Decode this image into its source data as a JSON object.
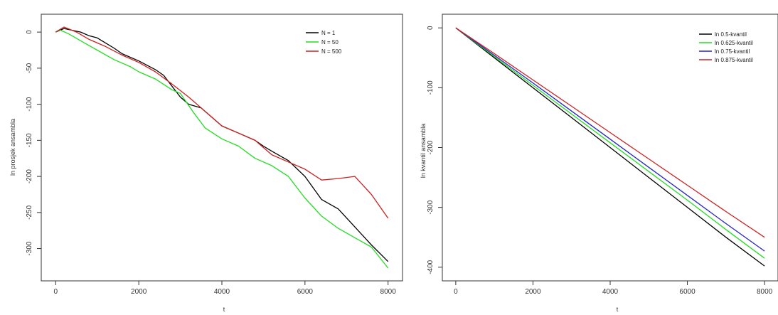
{
  "chart_data": [
    {
      "type": "line",
      "title": "",
      "xlabel": "t",
      "ylabel": "ln prosjek ansambla",
      "xlim": [
        0,
        8000
      ],
      "ylim": [
        -330,
        10
      ],
      "x_ticks": [
        0,
        2000,
        4000,
        6000,
        8000
      ],
      "y_ticks": [
        0,
        -50,
        -100,
        -150,
        -200,
        -250,
        -300
      ],
      "legend_placement": "top-right",
      "series": [
        {
          "name": "N = 1",
          "color": "#000000",
          "x": [
            0,
            200,
            600,
            800,
            1000,
            1200,
            1400,
            1600,
            2000,
            2400,
            2600,
            2800,
            3000,
            3200,
            3500,
            4000,
            4400,
            4800,
            5000,
            5200,
            5600,
            6000,
            6400,
            6800,
            7200,
            7600,
            8000
          ],
          "values": [
            0,
            5,
            0,
            -5,
            -8,
            -15,
            -22,
            -30,
            -40,
            -52,
            -60,
            -75,
            -90,
            -100,
            -105,
            -130,
            -140,
            -150,
            -158,
            -165,
            -178,
            -200,
            -232,
            -245,
            -270,
            -295,
            -318
          ]
        },
        {
          "name": "N = 50",
          "color": "#22dd22",
          "x": [
            0,
            100,
            300,
            600,
            1000,
            1400,
            1800,
            2000,
            2400,
            2800,
            3000,
            3300,
            3600,
            4000,
            4400,
            4800,
            5200,
            5600,
            6000,
            6400,
            6800,
            7200,
            7600,
            8000
          ],
          "values": [
            0,
            3,
            -2,
            -12,
            -25,
            -38,
            -48,
            -55,
            -65,
            -80,
            -85,
            -110,
            -133,
            -148,
            -158,
            -175,
            -185,
            -200,
            -230,
            -255,
            -272,
            -285,
            -298,
            -327
          ]
        },
        {
          "name": "N = 500",
          "color": "#cc2222",
          "x": [
            0,
            200,
            500,
            800,
            1200,
            1600,
            2000,
            2400,
            2800,
            3200,
            3600,
            4000,
            4400,
            4800,
            5200,
            5600,
            6000,
            6400,
            6800,
            7200,
            7600,
            8000
          ],
          "values": [
            0,
            7,
            0,
            -10,
            -20,
            -32,
            -42,
            -55,
            -72,
            -90,
            -110,
            -130,
            -140,
            -150,
            -170,
            -180,
            -190,
            -205,
            -203,
            -200,
            -225,
            -258
          ]
        }
      ]
    },
    {
      "type": "line",
      "title": "",
      "xlabel": "t",
      "ylabel": "ln kvantil ansambla",
      "xlim": [
        0,
        8000
      ],
      "ylim": [
        -405,
        5
      ],
      "x_ticks": [
        0,
        2000,
        4000,
        6000,
        8000
      ],
      "y_ticks": [
        0,
        -100,
        -200,
        -300,
        -400
      ],
      "legend_placement": "top-right",
      "series": [
        {
          "name": "ln 0.5-kvantil",
          "color": "#000000",
          "x": [
            0,
            1000,
            2000,
            3000,
            4000,
            5000,
            6000,
            7000,
            8000
          ],
          "values": [
            0,
            -50,
            -100,
            -150,
            -200,
            -250,
            -300,
            -350,
            -398
          ]
        },
        {
          "name": "ln 0.625-kvantil",
          "color": "#22dd22",
          "x": [
            0,
            1000,
            2000,
            3000,
            4000,
            5000,
            6000,
            7000,
            8000
          ],
          "values": [
            0,
            -48,
            -96,
            -144,
            -192,
            -240,
            -288,
            -337,
            -385
          ]
        },
        {
          "name": "ln 0.75-kvantil",
          "color": "#2222cc",
          "x": [
            0,
            1000,
            2000,
            3000,
            4000,
            5000,
            6000,
            7000,
            8000
          ],
          "values": [
            0,
            -46,
            -92,
            -139,
            -186,
            -233,
            -280,
            -327,
            -373
          ]
        },
        {
          "name": "ln 0.875-kvantil",
          "color": "#cc2222",
          "x": [
            0,
            1000,
            2000,
            3000,
            4000,
            5000,
            6000,
            7000,
            8000
          ],
          "values": [
            0,
            -43,
            -87,
            -131,
            -175,
            -219,
            -263,
            -307,
            -350
          ]
        }
      ]
    }
  ]
}
